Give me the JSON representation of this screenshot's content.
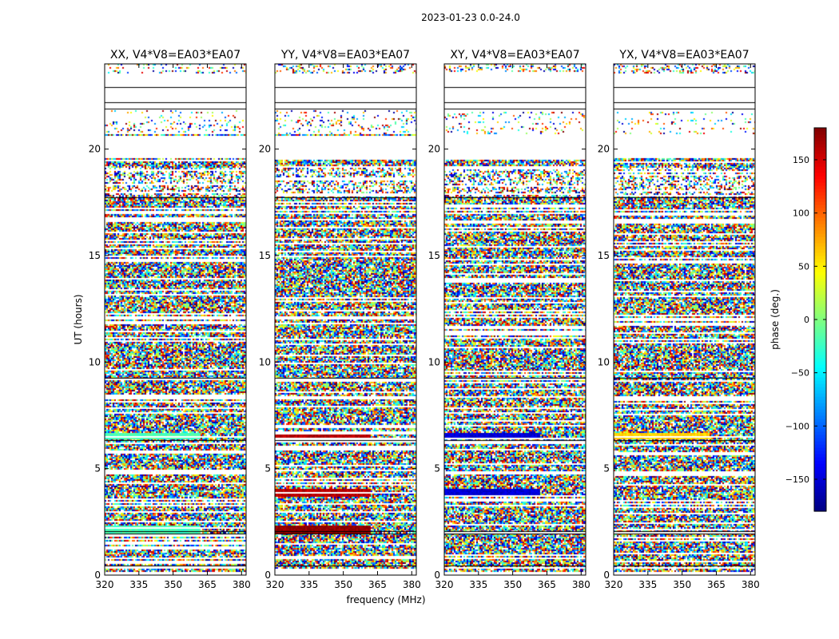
{
  "figure": {
    "suptitle": "2023-01-23 0.0-24.0",
    "xlabel": "frequency (MHz)",
    "ylabel": "UT (hours)"
  },
  "chart_data": {
    "type": "heatmap",
    "title": "2023-01-23 0.0-24.0",
    "xlabel": "frequency (MHz)",
    "ylabel": "UT (hours)",
    "xlim": [
      320,
      382
    ],
    "ylim": [
      0,
      24
    ],
    "xticks": [
      320,
      335,
      350,
      365,
      380
    ],
    "yticks": [
      0,
      5,
      10,
      15,
      20
    ],
    "panels": [
      {
        "title": "XX, V4*V8=EA03*EA07",
        "pol": "XX"
      },
      {
        "title": "YY, V4*V8=EA03*EA07",
        "pol": "YY"
      },
      {
        "title": "XY, V4*V8=EA03*EA07",
        "pol": "XY"
      },
      {
        "title": "YX, V4*V8=EA03*EA07",
        "pol": "YX"
      }
    ],
    "colorbar": {
      "label": "phase (deg.)",
      "colormap": "jet",
      "range": [
        -180,
        180
      ],
      "ticks": [
        -150,
        -100,
        -50,
        0,
        50,
        100,
        150
      ],
      "tick_labels": [
        "−150",
        "−100",
        "−50",
        "0",
        "50",
        "100",
        "150"
      ]
    },
    "blank_time_ranges_hours": [
      [
        21.9,
        23.6
      ],
      [
        19.6,
        20.7
      ],
      [
        0.0,
        0.15
      ]
    ],
    "coherent_features": [
      {
        "panel": "YY",
        "ut_range": [
          6.4,
          6.7
        ],
        "freq_range": [
          320,
          362
        ],
        "phase_deg": 160
      },
      {
        "panel": "YY",
        "ut_range": [
          3.75,
          4.05
        ],
        "freq_range": [
          320,
          362
        ],
        "phase_deg": 160
      },
      {
        "panel": "YY",
        "ut_range": [
          2.0,
          2.35
        ],
        "freq_range": [
          320,
          362
        ],
        "phase_deg": 175
      },
      {
        "panel": "XY",
        "ut_range": [
          6.4,
          6.7
        ],
        "freq_range": [
          320,
          362
        ],
        "phase_deg": -150
      },
      {
        "panel": "XY",
        "ut_range": [
          3.75,
          4.05
        ],
        "freq_range": [
          320,
          362
        ],
        "phase_deg": -150
      },
      {
        "panel": "XX",
        "ut_range": [
          6.4,
          6.7
        ],
        "freq_range": [
          320,
          362
        ],
        "phase_deg": -20
      },
      {
        "panel": "XX",
        "ut_range": [
          2.0,
          2.35
        ],
        "freq_range": [
          320,
          362
        ],
        "phase_deg": -20
      },
      {
        "panel": "YX",
        "ut_range": [
          6.4,
          6.7
        ],
        "freq_range": [
          320,
          362
        ],
        "phase_deg": 60
      }
    ]
  }
}
